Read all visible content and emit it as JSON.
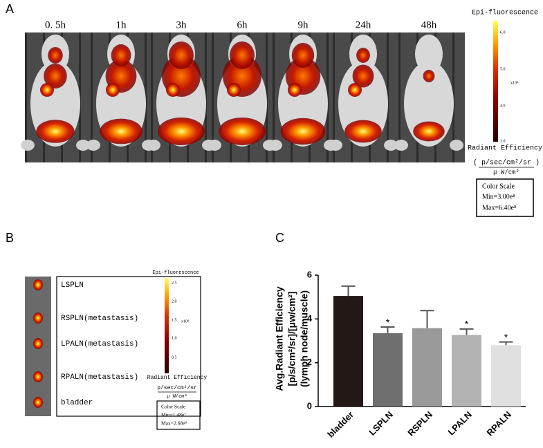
{
  "panel_a": {
    "label": "A",
    "times": [
      "0. 5h",
      "1h",
      "3h",
      "6h",
      "9h",
      "24h",
      "48h"
    ],
    "colorbar": {
      "title": "Epi-fluorescence",
      "ticks": [
        "6.0",
        "5.0",
        "4.0",
        "3.0"
      ],
      "multiplier": "x10⁸",
      "unit_title": "Radiant Efficiency",
      "unit_numerator": "( p/sec/cm²/sr )",
      "unit_denominator": "μ W/cm²"
    },
    "color_scale": {
      "title": "Color Scale",
      "min": "Min=3.00e⁸",
      "max": "Max=6.40e⁸"
    }
  },
  "panel_b": {
    "label": "B",
    "organs": [
      "LSPLN",
      "RSPLN(metastasis)",
      "LPALN(metastasis)",
      "RPALN(metastasis)",
      "bladder"
    ],
    "colorbar": {
      "title": "Epi-fluorescence",
      "ticks": [
        "2.5",
        "2.0",
        "1.5",
        "1.0",
        "0.5"
      ],
      "multiplier": "x10⁸",
      "unit_title": "Radiant Efficiency",
      "unit_numerator": "p/sec/cm²/sr",
      "unit_denominator": "μ W/cm²"
    },
    "color_scale": {
      "title": "Color Scale",
      "min": "Min=1.48e⁷",
      "max": "Max=2.68e⁸"
    }
  },
  "panel_c": {
    "label": "C"
  },
  "chart_data": {
    "type": "bar",
    "y_label": [
      "Avg.Radiant Efficiency",
      "[p/s/cm²/sr]/[μw/cm²]",
      "(lymph node/muscle)"
    ],
    "categories": [
      "bladder",
      "LSPLN",
      "RSPLN",
      "LPALN",
      "RPALN"
    ],
    "values": [
      5.05,
      3.35,
      3.58,
      3.27,
      2.8
    ],
    "errors": [
      0.45,
      0.28,
      0.8,
      0.27,
      0.15
    ],
    "significance": [
      null,
      "*",
      null,
      "*",
      "*"
    ],
    "colors": [
      "#231815",
      "#6f6f6f",
      "#9a9a9a",
      "#b3b3b3",
      "#e0e0e0"
    ],
    "ylim": [
      0,
      6
    ],
    "yticks": [
      0,
      2,
      4,
      6
    ]
  }
}
